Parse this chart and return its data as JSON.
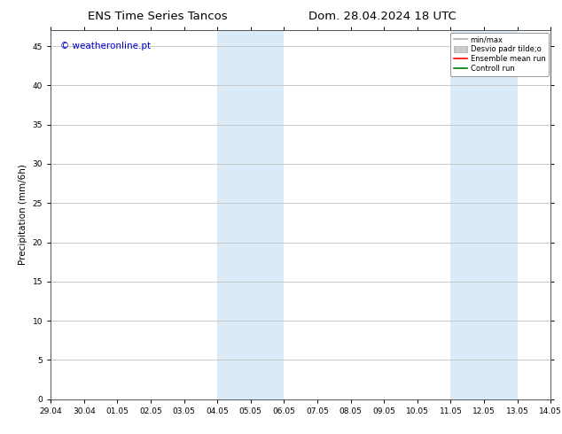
{
  "title_left": "ENS Time Series Tancos",
  "title_right": "Dom. 28.04.2024 18 UTC",
  "ylabel": "Precipitation (mm/6h)",
  "watermark": "© weatheronline.pt",
  "watermark_color": "#0000cc",
  "xtick_labels": [
    "29.04",
    "30.04",
    "01.05",
    "02.05",
    "03.05",
    "04.05",
    "05.05",
    "06.05",
    "07.05",
    "08.05",
    "09.05",
    "10.05",
    "11.05",
    "12.05",
    "13.05",
    "14.05"
  ],
  "ylim": [
    0,
    47
  ],
  "ytick_vals": [
    0,
    5,
    10,
    15,
    20,
    25,
    30,
    35,
    40,
    45
  ],
  "shaded_regions": [
    {
      "xstart": 5,
      "xend": 7,
      "color": "#daeaf7"
    },
    {
      "xstart": 12,
      "xend": 14,
      "color": "#daeaf7"
    }
  ],
  "legend_entries": [
    {
      "label": "min/max",
      "color": "#aaaaaa",
      "lw": 1.2
    },
    {
      "label": "Desvio padr tilde;o",
      "color": "#cccccc",
      "lw": 5
    },
    {
      "label": "Ensemble mean run",
      "color": "#ff0000",
      "lw": 1.2
    },
    {
      "label": "Controll run",
      "color": "#007700",
      "lw": 1.2
    }
  ],
  "background_color": "#ffffff",
  "grid_color": "#c8c8c8",
  "tick_label_size": 6.5,
  "title_size": 9.5,
  "ylabel_size": 7.5,
  "watermark_size": 7.5,
  "font_family": "DejaVu Sans"
}
